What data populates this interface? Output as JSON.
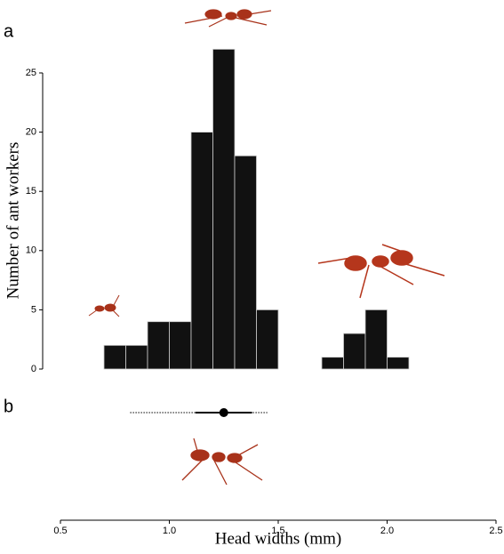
{
  "chart_data": {
    "type": "histogram",
    "panel_labels": [
      "a",
      "b"
    ],
    "xlabel": "Head widths (mm)",
    "ylabel": "Number of ant workers",
    "bins": [
      0.7,
      0.8,
      0.9,
      1.0,
      1.1,
      1.2,
      1.3,
      1.4,
      1.5,
      1.6,
      1.7,
      1.8,
      1.9,
      2.0,
      2.1
    ],
    "counts": [
      2,
      2,
      4,
      4,
      20,
      27,
      18,
      5,
      0,
      0,
      1,
      3,
      5,
      1
    ],
    "color": "#111111",
    "xlim": [
      0.5,
      2.5
    ],
    "xticks": [
      0.5,
      {
        "value": 1,
        "label": "1.0"
      },
      1.5,
      {
        "value": 2,
        "label": "2.0"
      },
      2.5
    ],
    "ylim": [
      0,
      25
    ],
    "yticks": [
      0,
      5,
      10,
      15,
      20,
      25
    ],
    "summary": {
      "point": 1.25,
      "inner": [
        1.12,
        1.38
      ],
      "outer": [
        0.82,
        1.45
      ]
    }
  }
}
